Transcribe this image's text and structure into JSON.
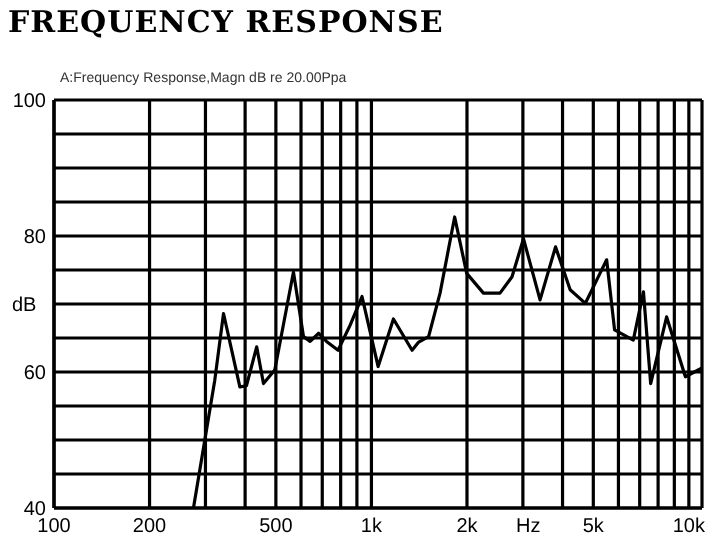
{
  "chart_data": {
    "type": "line",
    "title": "FREQUENCY RESPONSE",
    "annotations": [
      "A:Frequency Response,Magn dB re 20.00Ppa"
    ],
    "xlabel": "Hz",
    "ylabel": "dB",
    "log": "x",
    "grid": true,
    "marker": "none",
    "line_style": "solid",
    "xlim": [
      100,
      11000
    ],
    "ylim": [
      40,
      100
    ],
    "xticks": [
      100,
      200,
      {
        "value": 300,
        "label": null
      },
      {
        "value": 400,
        "label": null
      },
      500,
      {
        "value": 600,
        "label": null
      },
      {
        "value": 700,
        "label": null
      },
      {
        "value": 800,
        "label": null
      },
      {
        "value": 900,
        "label": null
      },
      {
        "value": 1000,
        "label": "1k"
      },
      {
        "value": 2000,
        "label": "2k"
      },
      {
        "value": 3000,
        "label": null
      },
      {
        "value": 4000,
        "label": null
      },
      {
        "value": 5000,
        "label": "5k"
      },
      {
        "value": 6000,
        "label": null
      },
      {
        "value": 7000,
        "label": null
      },
      {
        "value": 8000,
        "label": null
      },
      {
        "value": 9000,
        "label": null
      },
      {
        "value": 10000,
        "label": "10k"
      }
    ],
    "yticks": [
      40,
      {
        "value": 45,
        "label": null
      },
      {
        "value": 50,
        "label": null
      },
      {
        "value": 55,
        "label": null
      },
      60,
      {
        "value": 65,
        "label": null
      },
      {
        "value": 70,
        "label": null
      },
      {
        "value": 75,
        "label": null
      },
      80,
      {
        "value": 85,
        "label": null
      },
      {
        "value": 90,
        "label": null
      },
      {
        "value": 95,
        "label": null
      },
      100
    ],
    "x": [
      275,
      321,
      342,
      385,
      404,
      435,
      457,
      496,
      568,
      611,
      641,
      682,
      722,
      785,
      857,
      934,
      1050,
      1173,
      1343,
      1409,
      1514,
      1645,
      1829,
      1996,
      2254,
      2541,
      2773,
      3013,
      3398,
      3802,
      4227,
      4721,
      5248,
      5508,
      5834,
      6683,
      7194,
      7580,
      8511,
      9750,
      11000
    ],
    "series": [
      {
        "color": "#000000",
        "values": [
          40,
          58.8,
          68.6,
          57.8,
          58,
          63.7,
          58.3,
          60.3,
          74.7,
          65.2,
          64.5,
          65.7,
          64.5,
          63.2,
          66.9,
          71.1,
          60.8,
          67.8,
          63.2,
          64.4,
          65.2,
          71.6,
          82.8,
          74.5,
          71.6,
          71.6,
          74,
          79.6,
          70.6,
          78.4,
          72.1,
          70.1,
          74.5,
          76.5,
          66.2,
          64.7,
          71.8,
          58.3,
          68.1,
          59.3,
          60.6
        ]
      }
    ]
  }
}
